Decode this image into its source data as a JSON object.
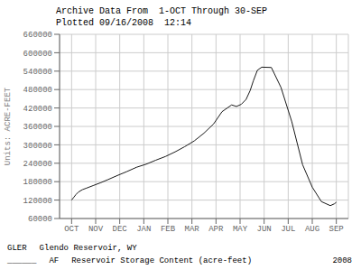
{
  "chart_data": {
    "type": "line",
    "title": "Archive Data From  1-OCT Through 30-SEP",
    "subtitle": "Plotted 09/16/2008  12:14",
    "y_label": "Units: ACRE-FEET",
    "x": [
      0.0,
      0.08,
      0.18,
      0.28,
      0.45,
      0.62,
      0.92,
      1.22,
      1.52,
      1.9,
      2.3,
      2.7,
      3.1,
      3.5,
      3.9,
      4.3,
      4.7,
      5.1,
      5.5,
      5.9,
      6.25,
      6.65,
      6.85,
      7.05,
      7.25,
      7.42,
      7.55,
      7.72,
      7.9,
      8.3,
      8.7,
      9.15,
      9.6,
      10.0,
      10.38,
      10.75,
      10.92,
      11.0
    ],
    "values": [
      120000,
      128000,
      138000,
      146000,
      154000,
      159000,
      168000,
      177000,
      187000,
      200000,
      213000,
      227000,
      237000,
      250000,
      262000,
      277000,
      294000,
      313000,
      338000,
      368000,
      408000,
      430000,
      425000,
      432000,
      448000,
      477000,
      508000,
      543000,
      553000,
      552000,
      487000,
      375000,
      235000,
      162000,
      115000,
      102000,
      108000,
      113000
    ],
    "color": "#1a1a1a",
    "xlim": [
      -0.5,
      11.5
    ],
    "xticks": [
      {
        "value": 0,
        "label": "OCT"
      },
      {
        "value": 1,
        "label": "NOV"
      },
      {
        "value": 2,
        "label": "DEC"
      },
      {
        "value": 3,
        "label": "JAN"
      },
      {
        "value": 4,
        "label": "FEB"
      },
      {
        "value": 5,
        "label": "MAR"
      },
      {
        "value": 6,
        "label": "APR"
      },
      {
        "value": 7,
        "label": "MAY"
      },
      {
        "value": 8,
        "label": "JUN"
      },
      {
        "value": 9,
        "label": "JUL"
      },
      {
        "value": 10,
        "label": "AUG"
      },
      {
        "value": 11,
        "label": "SEP"
      }
    ],
    "ylim": [
      60000,
      660000
    ],
    "yticks": [
      60000,
      120000,
      180000,
      240000,
      300000,
      360000,
      420000,
      480000,
      540000,
      600000,
      660000
    ],
    "grid": true,
    "annotations": [
      [
        "GLER",
        "Glendo Reservoir, WY"
      ],
      [
        "______",
        "AF",
        "Reservoir Storage Content (acre-feet)",
        "2008"
      ]
    ]
  }
}
